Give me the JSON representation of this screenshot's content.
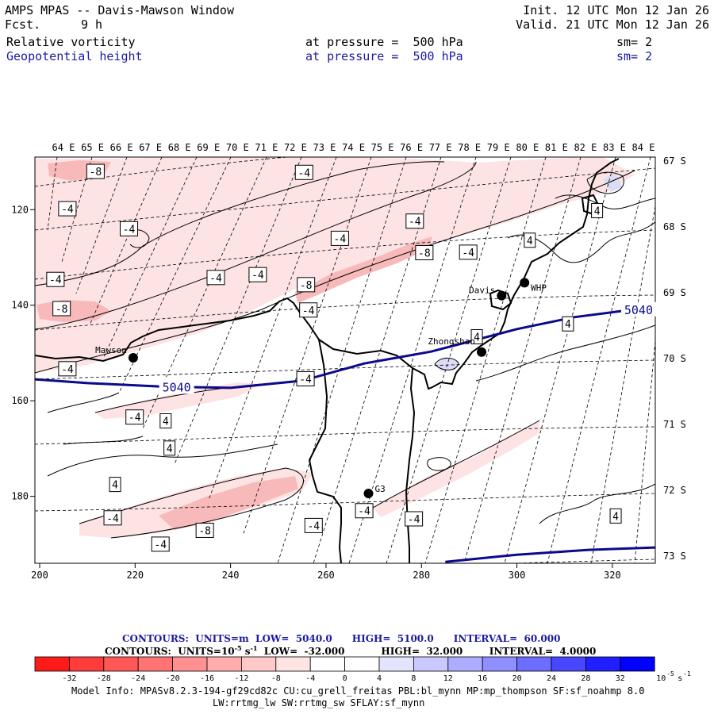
{
  "header": {
    "title": "AMPS MPAS -- Davis-Mawson Window",
    "fcst_label": "Fcst.",
    "fcst_value": "9 h",
    "init": "Init. 12 UTC Mon 12 Jan 26",
    "valid": "Valid. 21 UTC Mon 12 Jan 26",
    "field1": "Relative vorticity",
    "field2": "Geopotential height",
    "pressure1": "at pressure =  500 hPa",
    "pressure2": "at pressure =  500 hPa",
    "sm1": "sm= 2",
    "sm2": "sm= 2"
  },
  "colors": {
    "height_contour": "#0a0a8c",
    "vorticity_neg_light": "#fde3e3",
    "vorticity_neg_mid": "#f7b9b9",
    "vorticity_pos_light": "#dcdcf7"
  },
  "chart_data": {
    "type": "contour_map",
    "lon_labels": [
      "64 E",
      "65 E",
      "66 E",
      "67 E",
      "68 E",
      "69 E",
      "70 E",
      "71 E",
      "72 E",
      "73 E",
      "74 E",
      "75 E",
      "76 E",
      "77 E",
      "78 E",
      "79 E",
      "80 E",
      "81 E",
      "82 E",
      "83 E",
      "84 E"
    ],
    "lat_labels": [
      "67 S",
      "68 S",
      "69 S",
      "70 S",
      "71 S",
      "72 S",
      "73 S"
    ],
    "x_ticks": [
      200,
      220,
      240,
      260,
      280,
      300,
      320
    ],
    "y_ticks": [
      120,
      140,
      160,
      180
    ],
    "xlim": [
      199,
      329
    ],
    "ylim": [
      109,
      194
    ],
    "stations": [
      {
        "name": "Mawson",
        "x": 219.6,
        "y": 151.0
      },
      {
        "name": "Davis",
        "x": 296.8,
        "y": 138.0
      },
      {
        "name": "WHP",
        "x": 301.6,
        "y": 135.3
      },
      {
        "name": "Zhongshan",
        "x": 292.6,
        "y": 149.8
      },
      {
        "name": "G3",
        "x": 268.9,
        "y": 179.4
      }
    ],
    "height_contours": [
      {
        "level": 5040,
        "label": "5040",
        "points": [
          [
            199,
            155.5
          ],
          [
            210,
            156.3
          ],
          [
            225,
            157.0
          ],
          [
            240,
            157.3
          ],
          [
            255,
            155.8
          ],
          [
            268,
            152.2
          ],
          [
            282,
            149.7
          ],
          [
            300,
            145.0
          ],
          [
            312,
            142.5
          ],
          [
            322,
            141.2
          ],
          [
            329,
            140.8
          ]
        ]
      },
      {
        "level": 5040,
        "label": "",
        "points": [
          [
            285,
            193.7
          ],
          [
            300,
            192.2
          ],
          [
            315,
            191.2
          ],
          [
            329,
            190.7
          ]
        ]
      }
    ],
    "height_label_positions": [
      {
        "label": "5040",
        "x": 228.7,
        "y": 157.2
      },
      {
        "label": "5040",
        "x": 325.5,
        "y": 141.0
      }
    ],
    "vorticity_labels": [
      {
        "v": "-8",
        "x": 211.7,
        "y": 112.0
      },
      {
        "v": "-4",
        "x": 255.4,
        "y": 112.2
      },
      {
        "v": "-4",
        "x": 205.8,
        "y": 119.8
      },
      {
        "v": "-4",
        "x": 218.7,
        "y": 124.0
      },
      {
        "v": "-4",
        "x": 262.9,
        "y": 126.0
      },
      {
        "v": "-4",
        "x": 278.6,
        "y": 122.4
      },
      {
        "v": "-8",
        "x": 280.6,
        "y": 129.0
      },
      {
        "v": "-4",
        "x": 289.8,
        "y": 128.9
      },
      {
        "v": "4",
        "x": 302.7,
        "y": 126.4
      },
      {
        "v": "4",
        "x": 316.8,
        "y": 120.2
      },
      {
        "v": "-4",
        "x": 203.3,
        "y": 134.6
      },
      {
        "v": "-4",
        "x": 236.9,
        "y": 134.2
      },
      {
        "v": "-4",
        "x": 245.7,
        "y": 133.6
      },
      {
        "v": "-8",
        "x": 255.8,
        "y": 135.7
      },
      {
        "v": "-8",
        "x": 204.6,
        "y": 140.7
      },
      {
        "v": "-4",
        "x": 256.3,
        "y": 141.0
      },
      {
        "v": "4",
        "x": 291.6,
        "y": 146.6
      },
      {
        "v": "4",
        "x": 310.7,
        "y": 143.9
      },
      {
        "v": "-4",
        "x": 205.8,
        "y": 153.3
      },
      {
        "v": "-4",
        "x": 255.7,
        "y": 155.4
      },
      {
        "v": "-4",
        "x": 219.9,
        "y": 163.4
      },
      {
        "v": "4",
        "x": 226.4,
        "y": 164.2
      },
      {
        "v": "4",
        "x": 227.2,
        "y": 169.9
      },
      {
        "v": "4",
        "x": 215.8,
        "y": 177.5
      },
      {
        "v": "-4",
        "x": 215.3,
        "y": 184.5
      },
      {
        "v": "-4",
        "x": 268.0,
        "y": 183.0
      },
      {
        "v": "-4",
        "x": 278.4,
        "y": 184.7
      },
      {
        "v": "-8",
        "x": 234.6,
        "y": 187.1
      },
      {
        "v": "-4",
        "x": 257.4,
        "y": 186.1
      },
      {
        "v": "-4",
        "x": 225.3,
        "y": 190.0
      },
      {
        "v": "4",
        "x": 320.7,
        "y": 184.1
      }
    ]
  },
  "legend": {
    "line1": {
      "prefix": "CONTOURS:",
      "units": "UNITS=m",
      "low": "LOW=  5040.0",
      "high": "HIGH=  5100.0",
      "interval": "INTERVAL=  60.000"
    },
    "line2": {
      "prefix": "CONTOURS:",
      "units": "UNITS=10",
      "units_exp": "-5",
      "units_suffix": "s",
      "units_suffix_exp": "-1",
      "low": "LOW=  -32.000",
      "high": "HIGH=  32.000",
      "interval": "INTERVAL=  4.0000"
    },
    "colorbar": {
      "ticks": [
        "-32",
        "-28",
        "-24",
        "-20",
        "-16",
        "-12",
        "-8",
        "-4",
        "0",
        "4",
        "8",
        "12",
        "16",
        "20",
        "24",
        "28",
        "32"
      ],
      "colors": [
        "#ff1a1a",
        "#ff3b3b",
        "#ff5757",
        "#ff7373",
        "#ff9191",
        "#ffadad",
        "#ffc9c9",
        "#ffe4e4",
        "#ffffff",
        "#ffffff",
        "#e4e4ff",
        "#c9c9ff",
        "#adadff",
        "#8f8fff",
        "#6d6dff",
        "#4747ff",
        "#1f1fff",
        "#0000ff"
      ],
      "unit": "10",
      "unit_exp": "-5",
      "unit_suffix": "s",
      "unit_suffix_exp": "-1"
    }
  },
  "model_info": {
    "line1": "Model Info: MPASv8.2.3-194-gf29cd82c CU:cu_grell_freitas PBL:bl_mynn MP:mp_thompson SF:sf_noahmp 8.0",
    "line2": "LW:rrtmg_lw SW:rrtmg_sw SFLAY:sf_mynn"
  }
}
